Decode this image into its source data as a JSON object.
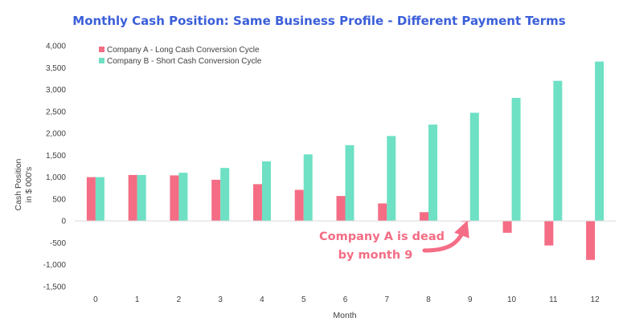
{
  "chart_data": {
    "type": "bar",
    "title": "Monthly Cash Position: Same Business Profile - Different Payment Terms",
    "xlabel": "Month",
    "ylabel_line1": "Cash Position",
    "ylabel_line2": "in $ 000's",
    "categories": [
      "0",
      "1",
      "2",
      "3",
      "4",
      "5",
      "6",
      "7",
      "8",
      "9",
      "10",
      "11",
      "12"
    ],
    "ylim": [
      -1500,
      4000
    ],
    "yticks": [
      -1500,
      -1000,
      -500,
      0,
      500,
      1000,
      1500,
      2000,
      2500,
      3000,
      3500,
      4000
    ],
    "ytick_labels": [
      "-1,500",
      "-1,000",
      "-500",
      "0",
      "500",
      "1,000",
      "1,500",
      "2,000",
      "2,500",
      "3,000",
      "3,500",
      "4,000"
    ],
    "grid": false,
    "legend_position": "top-left",
    "series": [
      {
        "name": "Company A - Long Cash Conversion Cycle",
        "color": "#f46d85",
        "values": [
          1000,
          1050,
          1040,
          940,
          840,
          710,
          570,
          400,
          200,
          -20,
          -270,
          -560,
          -890
        ]
      },
      {
        "name": "Company B - Short Cash Conversion Cycle",
        "color": "#6ee0c4",
        "values": [
          1000,
          1050,
          1100,
          1210,
          1360,
          1520,
          1730,
          1940,
          2200,
          2470,
          2810,
          3200,
          3640
        ]
      }
    ],
    "annotation": {
      "line1": "Company A is dead",
      "line2": "by month 9",
      "color": "#f46d85"
    },
    "title_color": "#3b5fd9"
  }
}
